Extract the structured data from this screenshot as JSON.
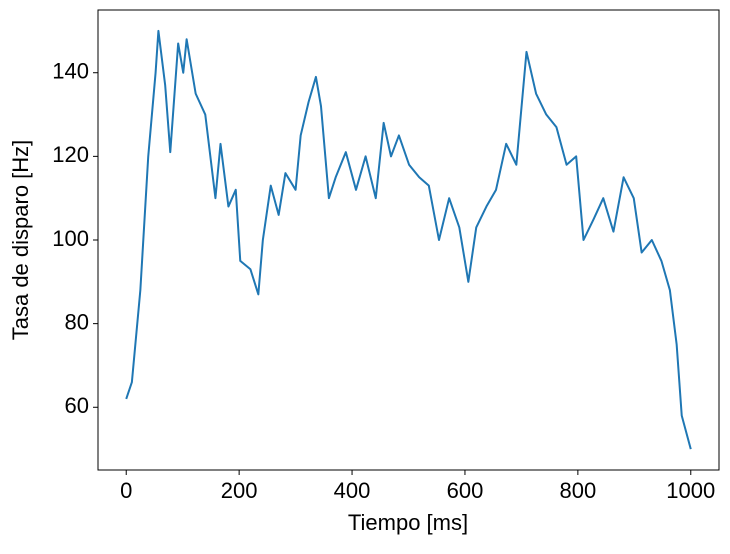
{
  "chart_data": {
    "type": "line",
    "xlabel": "Tiempo [ms]",
    "ylabel": "Tasa de disparo [Hz]",
    "x": [
      0,
      10,
      25,
      39,
      52,
      57,
      69,
      78,
      92,
      101,
      107,
      123,
      140,
      158,
      167,
      181,
      194,
      202,
      220,
      234,
      242,
      256,
      270,
      282,
      300,
      309,
      323,
      336,
      345,
      359,
      371,
      389,
      407,
      424,
      442,
      456,
      469,
      483,
      501,
      519,
      536,
      554,
      572,
      590,
      606,
      620,
      638,
      655,
      673,
      691,
      709,
      726,
      744,
      762,
      780,
      797,
      810,
      828,
      845,
      863,
      881,
      899,
      913,
      931,
      948,
      963,
      975,
      984,
      1000
    ],
    "series": [
      {
        "color": "#1f77b4",
        "values": [
          62,
          66,
          88,
          120,
          140,
          150,
          137,
          121,
          147,
          140,
          148,
          135,
          130,
          110,
          123,
          108,
          112,
          95,
          93,
          87,
          100,
          113,
          106,
          116,
          112,
          125,
          133,
          139,
          132,
          110,
          115,
          121,
          112,
          120,
          110,
          128,
          120,
          125,
          118,
          115,
          113,
          100,
          110,
          103,
          90,
          103,
          108,
          112,
          123,
          118,
          145,
          135,
          130,
          127,
          118,
          120,
          100,
          105,
          110,
          102,
          115,
          110,
          97,
          100,
          95,
          88,
          75,
          58,
          50
        ]
      }
    ],
    "xlim": [
      -50,
      1050
    ],
    "ylim": [
      45,
      155
    ],
    "xticks": [
      0,
      200,
      400,
      600,
      800,
      1000
    ],
    "yticks": [
      60,
      80,
      100,
      120,
      140
    ]
  }
}
